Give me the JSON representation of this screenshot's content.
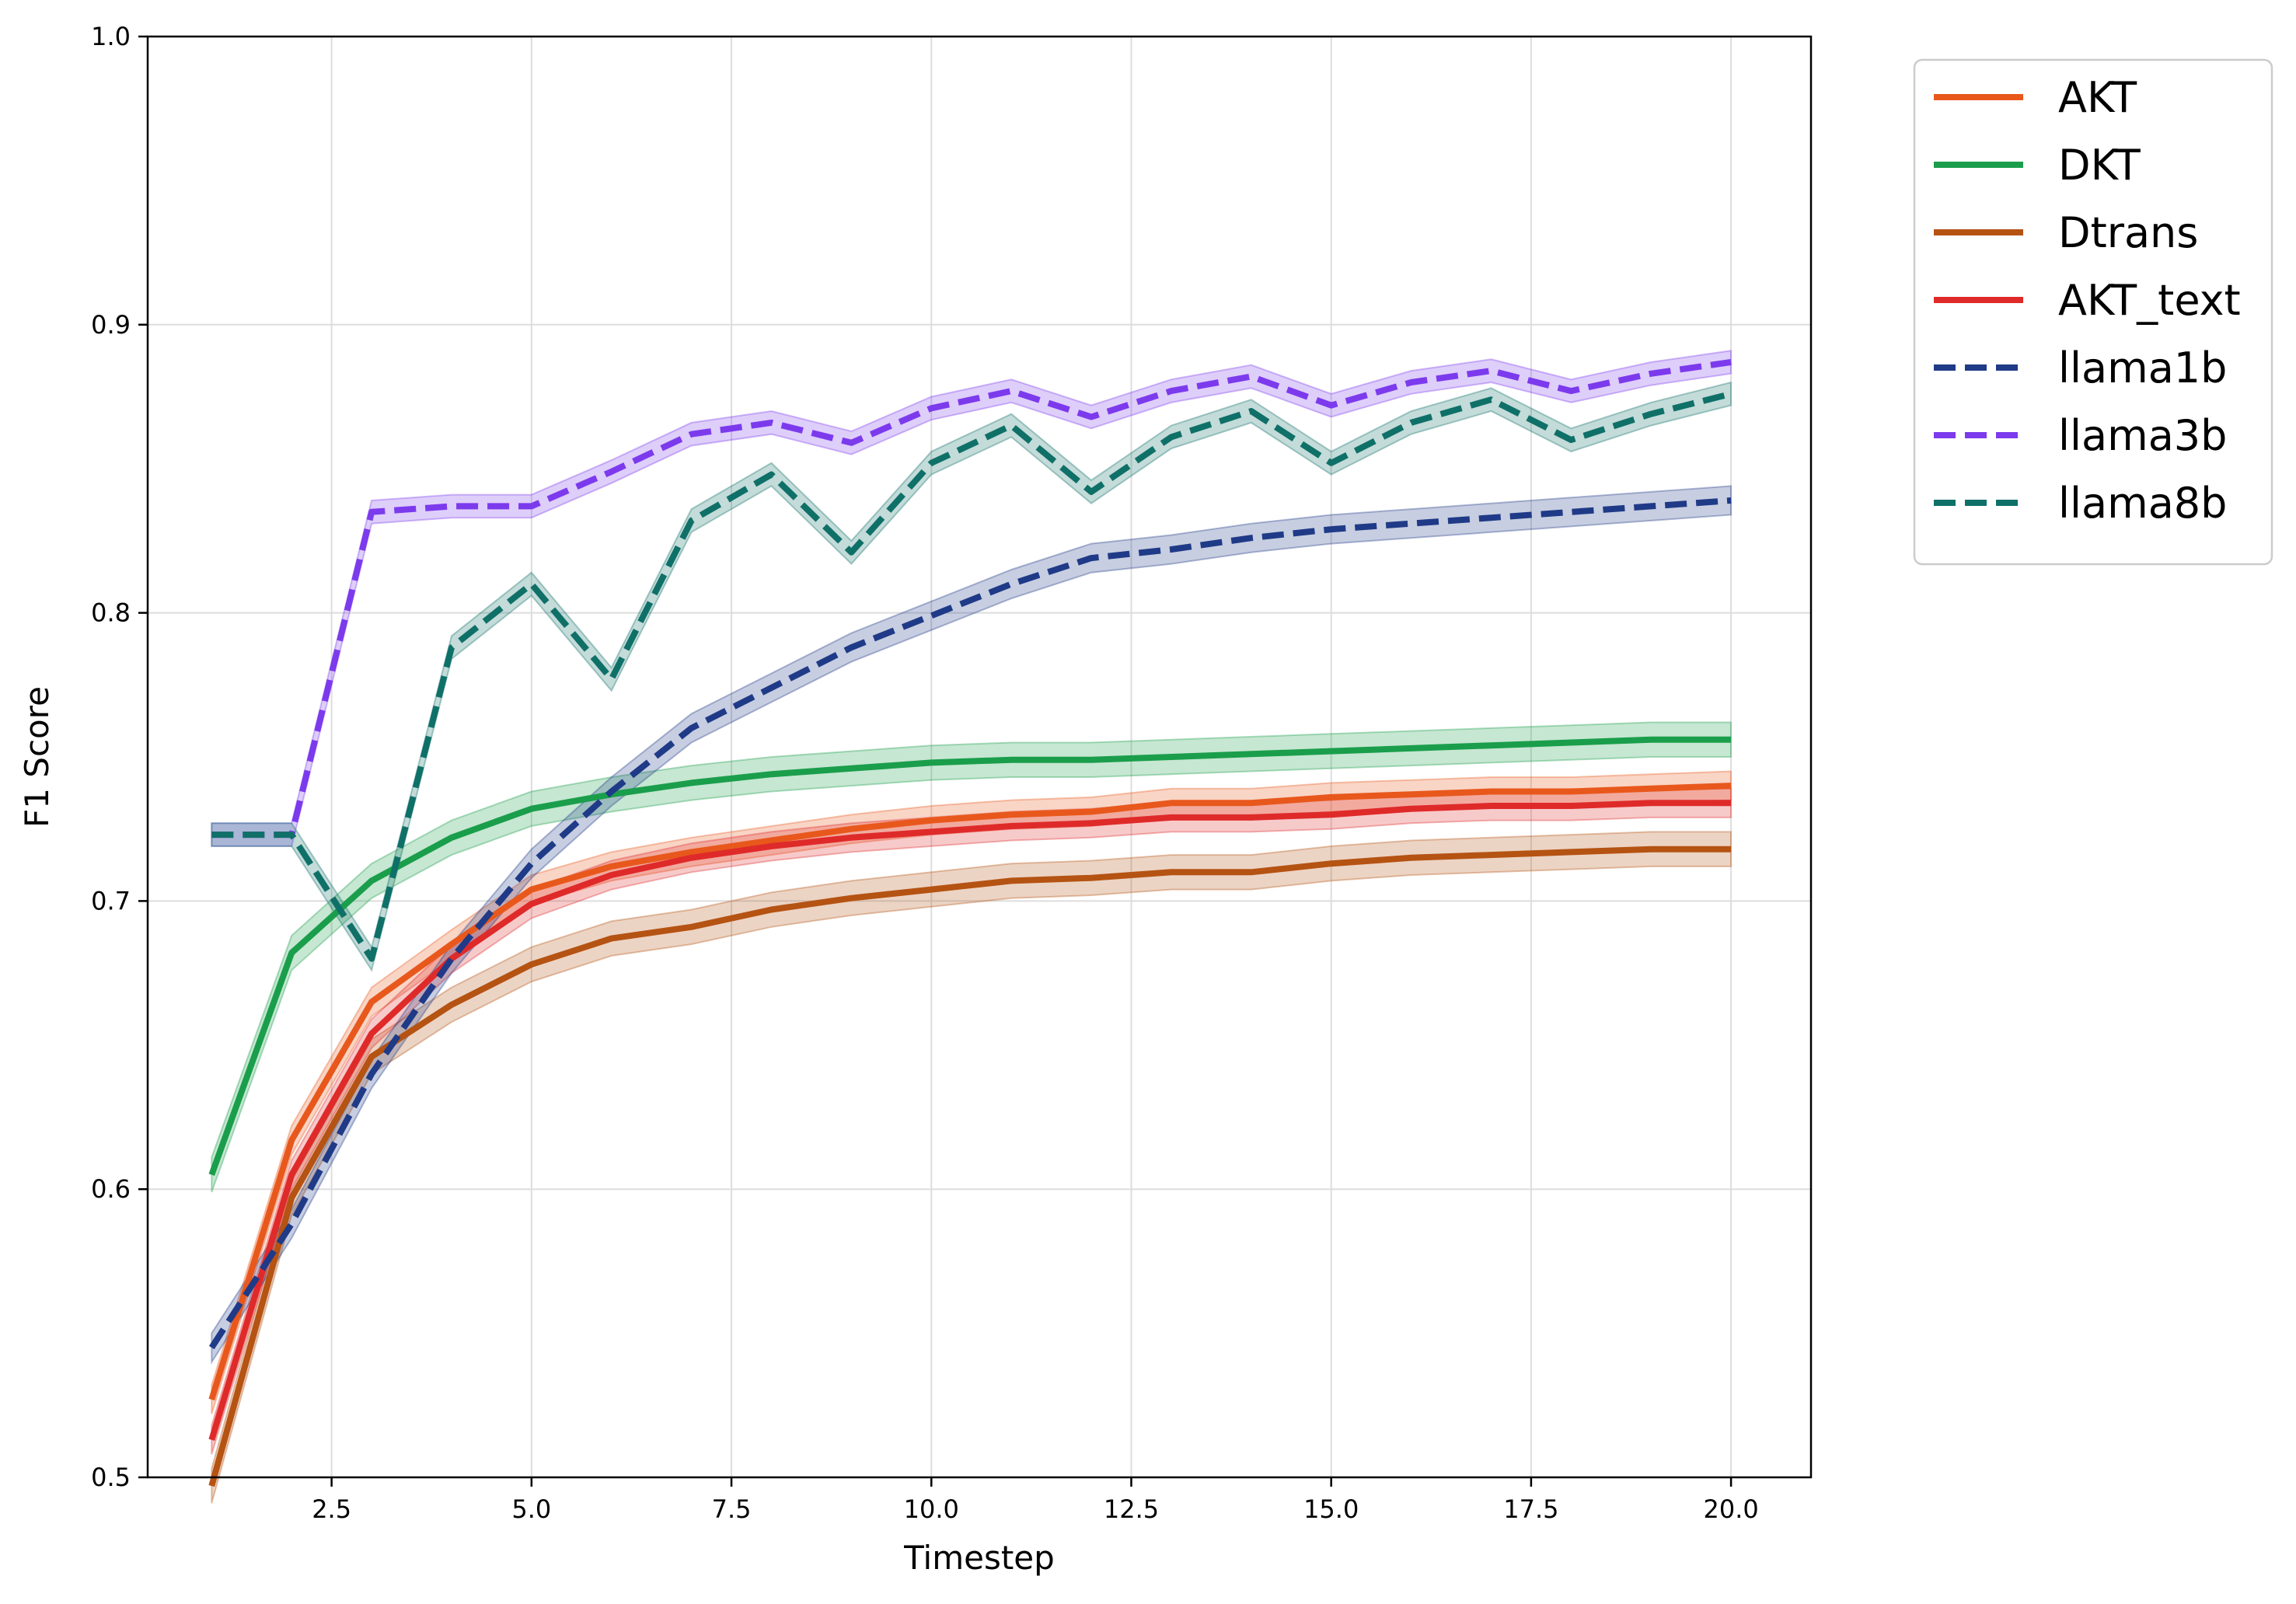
{
  "chart_data": {
    "type": "line",
    "title": "",
    "xlabel": "Timestep",
    "ylabel": "F1 Score",
    "xlim": [
      0.2,
      21.0
    ],
    "ylim": [
      0.5,
      1.0
    ],
    "xticks": [
      2.5,
      5.0,
      7.5,
      10.0,
      12.5,
      15.0,
      17.5,
      20.0
    ],
    "xtick_labels": [
      "2.5",
      "5.0",
      "7.5",
      "10.0",
      "12.5",
      "15.0",
      "17.5",
      "20.0"
    ],
    "yticks": [
      0.5,
      0.6,
      0.7,
      0.8,
      0.9,
      1.0
    ],
    "ytick_labels": [
      "0.5",
      "0.6",
      "0.7",
      "0.8",
      "0.9",
      "1.0"
    ],
    "grid": true,
    "legend_position": "outside-top-right",
    "x": [
      1,
      2,
      3,
      4,
      5,
      6,
      7,
      8,
      9,
      10,
      11,
      12,
      13,
      14,
      15,
      16,
      17,
      18,
      19,
      20
    ],
    "series": [
      {
        "name": "AKT",
        "color": "#e8581c",
        "dash": "solid",
        "band": 0.005,
        "values": [
          0.527,
          0.617,
          0.665,
          0.685,
          0.704,
          0.712,
          0.717,
          0.721,
          0.725,
          0.728,
          0.73,
          0.731,
          0.734,
          0.734,
          0.736,
          0.737,
          0.738,
          0.738,
          0.739,
          0.74
        ]
      },
      {
        "name": "DKT",
        "color": "#1a9e4b",
        "dash": "solid",
        "band": 0.006,
        "values": [
          0.605,
          0.682,
          0.707,
          0.722,
          0.732,
          0.737,
          0.741,
          0.744,
          0.746,
          0.748,
          0.749,
          0.749,
          0.75,
          0.751,
          0.752,
          0.753,
          0.754,
          0.755,
          0.756,
          0.756
        ]
      },
      {
        "name": "Dtrans",
        "color": "#b55313",
        "dash": "solid",
        "band": 0.006,
        "values": [
          0.497,
          0.597,
          0.646,
          0.664,
          0.678,
          0.687,
          0.691,
          0.697,
          0.701,
          0.704,
          0.707,
          0.708,
          0.71,
          0.71,
          0.713,
          0.715,
          0.716,
          0.717,
          0.718,
          0.718
        ]
      },
      {
        "name": "AKT_text",
        "color": "#df2a2a",
        "dash": "solid",
        "band": 0.005,
        "values": [
          0.513,
          0.605,
          0.654,
          0.68,
          0.699,
          0.709,
          0.715,
          0.719,
          0.722,
          0.724,
          0.726,
          0.727,
          0.729,
          0.729,
          0.73,
          0.732,
          0.733,
          0.733,
          0.734,
          0.734
        ]
      },
      {
        "name": "llama1b",
        "color": "#1f3a87",
        "dash": "dashed",
        "band": 0.005,
        "values": [
          0.545,
          0.588,
          0.64,
          0.68,
          0.713,
          0.738,
          0.76,
          0.774,
          0.788,
          0.799,
          0.81,
          0.819,
          0.822,
          0.826,
          0.829,
          0.831,
          0.833,
          0.835,
          0.837,
          0.839
        ]
      },
      {
        "name": "llama3b",
        "color": "#7c3aed",
        "dash": "dashed",
        "band": 0.004,
        "values": [
          0.723,
          0.723,
          0.835,
          0.837,
          0.837,
          0.849,
          0.862,
          0.866,
          0.859,
          0.871,
          0.877,
          0.868,
          0.877,
          0.882,
          0.872,
          0.88,
          0.884,
          0.877,
          0.883,
          0.887
        ]
      },
      {
        "name": "llama8b",
        "color": "#0f7068",
        "dash": "dashed",
        "band": 0.004,
        "values": [
          0.723,
          0.723,
          0.68,
          0.788,
          0.81,
          0.777,
          0.832,
          0.848,
          0.821,
          0.852,
          0.865,
          0.842,
          0.861,
          0.87,
          0.852,
          0.866,
          0.874,
          0.86,
          0.869,
          0.876
        ]
      }
    ]
  }
}
